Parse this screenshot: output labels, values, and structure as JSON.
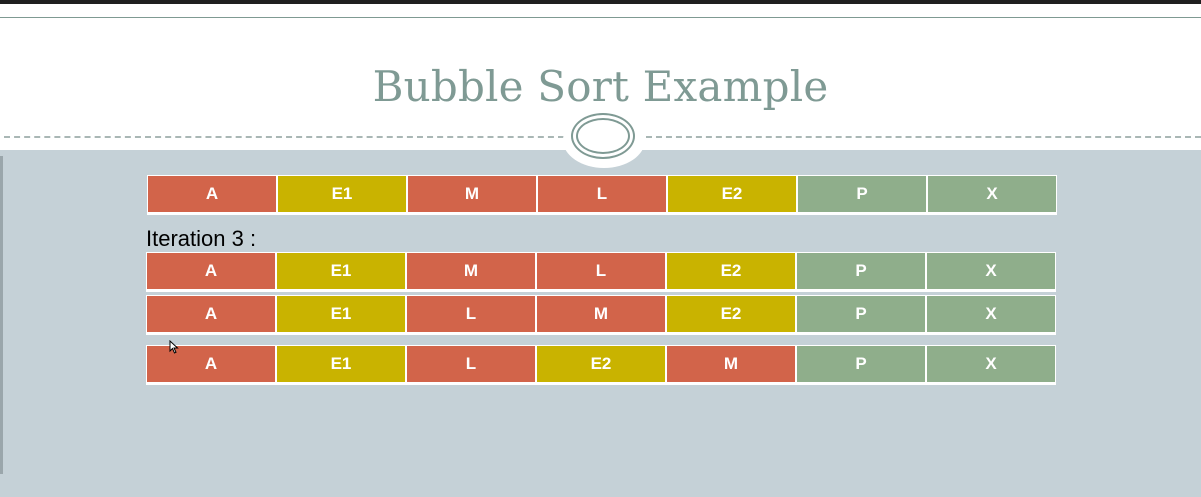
{
  "slide": {
    "title": "Bubble Sort Example",
    "iteration_label": "Iteration 3 :"
  },
  "colors": {
    "red": "#d2644a",
    "yellow": "#c9b300",
    "green": "#8fae8b",
    "background": "#c5d1d7",
    "title": "#7f9a94"
  },
  "rows": [
    {
      "cells": [
        {
          "label": "A",
          "color": "red"
        },
        {
          "label": "E1",
          "color": "yellow"
        },
        {
          "label": "M",
          "color": "red"
        },
        {
          "label": "L",
          "color": "red"
        },
        {
          "label": "E2",
          "color": "yellow"
        },
        {
          "label": "P",
          "color": "green"
        },
        {
          "label": "X",
          "color": "green"
        }
      ]
    },
    {
      "cells": [
        {
          "label": "A",
          "color": "red"
        },
        {
          "label": "E1",
          "color": "yellow"
        },
        {
          "label": "M",
          "color": "red"
        },
        {
          "label": "L",
          "color": "red"
        },
        {
          "label": "E2",
          "color": "yellow"
        },
        {
          "label": "P",
          "color": "green"
        },
        {
          "label": "X",
          "color": "green"
        }
      ]
    },
    {
      "cells": [
        {
          "label": "A",
          "color": "red"
        },
        {
          "label": "E1",
          "color": "yellow"
        },
        {
          "label": "L",
          "color": "red"
        },
        {
          "label": "M",
          "color": "red"
        },
        {
          "label": "E2",
          "color": "yellow"
        },
        {
          "label": "P",
          "color": "green"
        },
        {
          "label": "X",
          "color": "green"
        }
      ]
    },
    {
      "cells": [
        {
          "label": "A",
          "color": "red"
        },
        {
          "label": "E1",
          "color": "yellow"
        },
        {
          "label": "L",
          "color": "red"
        },
        {
          "label": "E2",
          "color": "yellow"
        },
        {
          "label": "M",
          "color": "red"
        },
        {
          "label": "P",
          "color": "green"
        },
        {
          "label": "X",
          "color": "green"
        }
      ]
    }
  ]
}
